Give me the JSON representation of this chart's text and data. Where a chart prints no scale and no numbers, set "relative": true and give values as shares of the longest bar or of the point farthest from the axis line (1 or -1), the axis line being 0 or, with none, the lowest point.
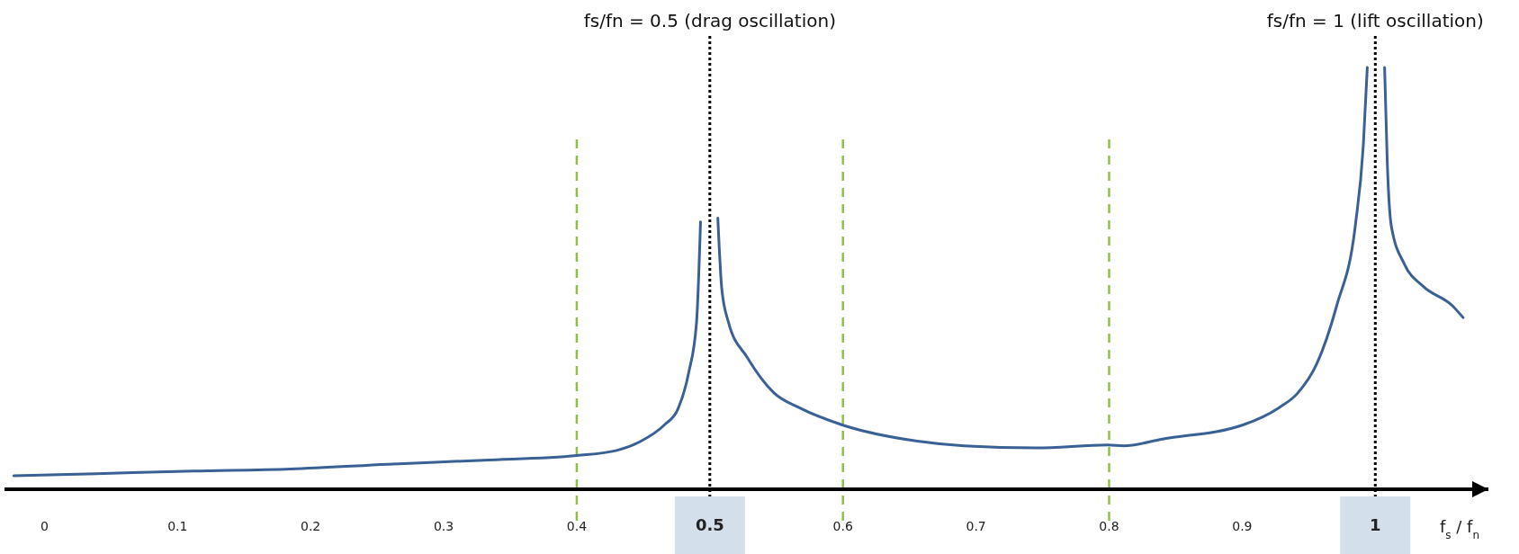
{
  "chart_data": {
    "type": "line",
    "relative": true,
    "xlabel": "f$_{s}$ / f$_{n}$",
    "xlim": [
      -0.03,
      1.085
    ],
    "xticks": [
      0,
      0.1,
      0.2,
      0.3,
      0.4,
      0.5,
      0.6,
      0.7,
      0.8,
      0.9,
      1
    ],
    "grid": false,
    "marker": "none",
    "line_style": "solid",
    "series": [
      {
        "color": "#3a6196",
        "x": [
          -0.023,
          0.039,
          0.112,
          0.185,
          0.258,
          0.33,
          0.4,
          0.43,
          0.447,
          0.466,
          0.476,
          0.484,
          0.49,
          0.493,
          0.5,
          0.506,
          0.509,
          0.514,
          0.528,
          0.548,
          0.568,
          0.599,
          0.656,
          0.691,
          0.745,
          0.799,
          0.811,
          0.84,
          0.901,
          0.927,
          0.942,
          0.956,
          0.971,
          0.985,
          0.991,
          0.994,
          1.0,
          1.007,
          1.009,
          1.012,
          1.022,
          1.036,
          1.058,
          1.066
        ],
        "values": [
          0.032,
          0.037,
          0.043,
          0.048,
          0.059,
          0.069,
          0.08,
          0.092,
          0.112,
          0.153,
          0.19,
          0.275,
          0.396,
          0.634,
          null,
          0.643,
          0.474,
          0.396,
          0.313,
          0.229,
          0.192,
          0.153,
          0.114,
          0.103,
          0.098,
          0.105,
          0.103,
          0.119,
          0.153,
          0.192,
          0.229,
          0.297,
          0.435,
          0.625,
          0.815,
          1,
          null,
          1,
          0.776,
          0.625,
          0.533,
          0.481,
          0.435,
          0.407
        ]
      }
    ],
    "ref_lines": [
      {
        "axis": "x",
        "value": 0.4,
        "color": "#92c047",
        "line_style": "dashed"
      },
      {
        "axis": "x",
        "value": 0.6,
        "color": "#92c047",
        "line_style": "dashed"
      },
      {
        "axis": "x",
        "value": 0.8,
        "color": "#92c047",
        "line_style": "dashed"
      },
      {
        "axis": "x",
        "value": 0.5,
        "label": "fs/fn = 0.5 (drag oscillation)",
        "color": "#000000",
        "line_style": "dotted"
      },
      {
        "axis": "x",
        "value": 1,
        "label": "fs/fn = 1 (lift oscillation)",
        "color": "#000000",
        "line_style": "dotted"
      }
    ]
  }
}
